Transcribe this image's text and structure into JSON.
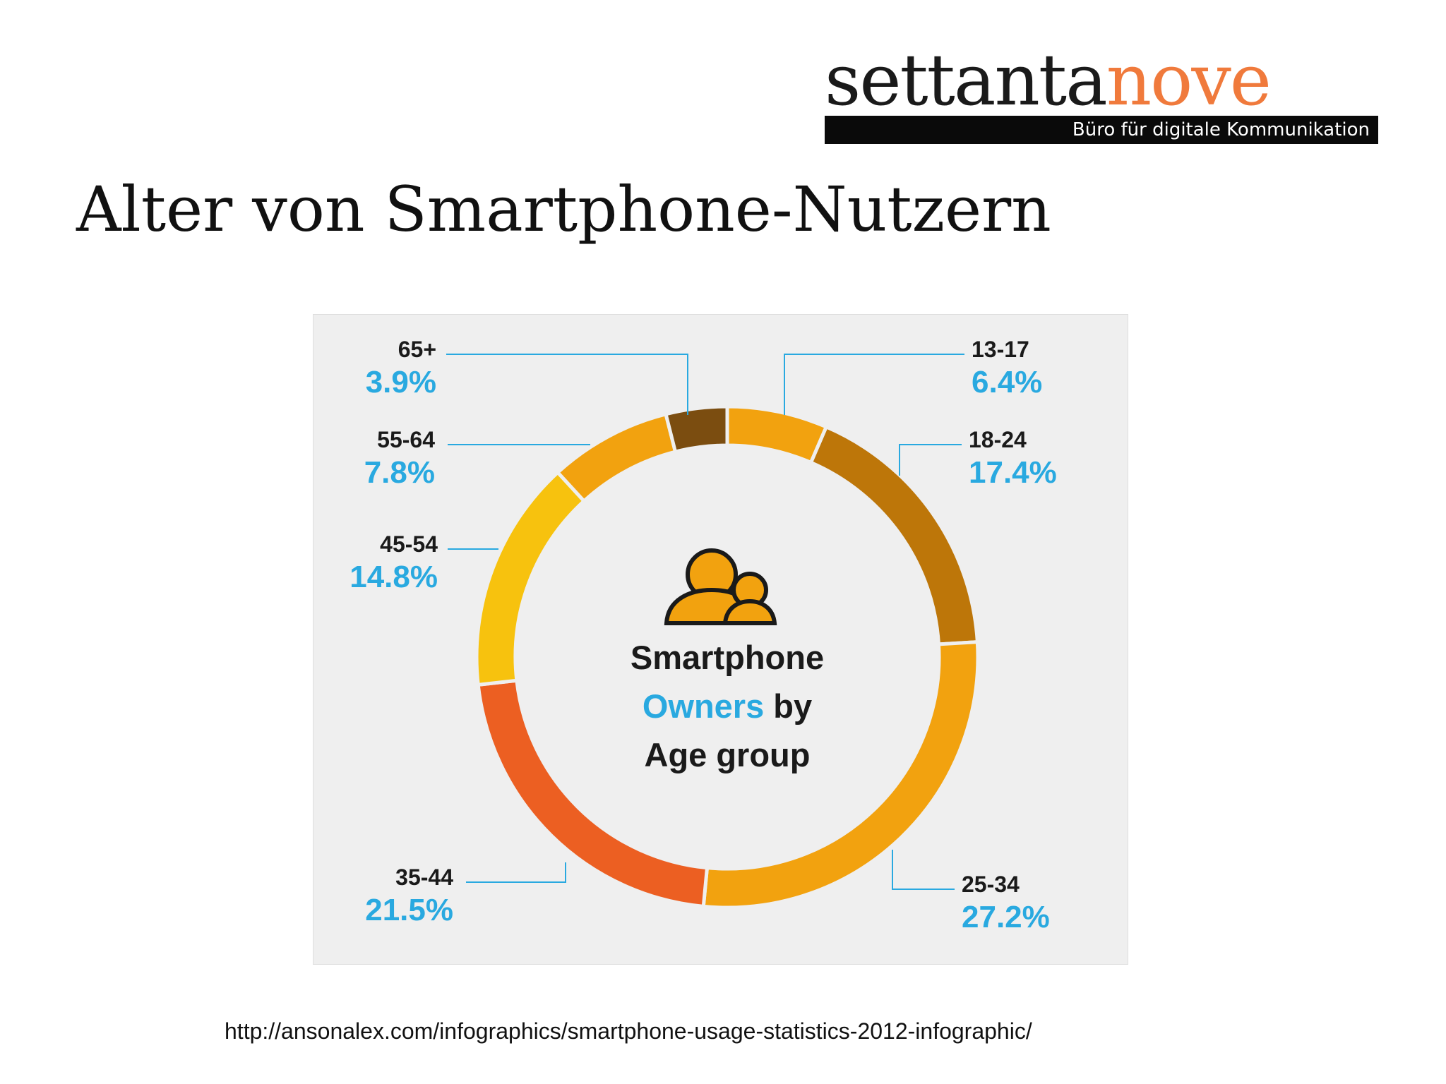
{
  "logo": {
    "word_part1": "settanta",
    "word_part2": "nove",
    "tagline": "Büro für digitale Kommunikation",
    "colors": {
      "part1": "#1a1a1a",
      "part2": "#f07a3c",
      "bar": "#0a0a0a"
    }
  },
  "slide": {
    "title": "Alter von Smartphone-Nutzern",
    "source_url": "http://ansonalex.com/infographics/smartphone-usage-statistics-2012-infographic/"
  },
  "chart_data": {
    "type": "pie",
    "center_title": [
      "Smartphone",
      "Owners",
      "by",
      "Age group"
    ],
    "icon": "people-icon",
    "label_color": "#29a9e0",
    "slices": [
      {
        "label": "13-17",
        "value": 6.4,
        "value_label": "6.4%",
        "color": "#f2a20f"
      },
      {
        "label": "18-24",
        "value": 17.4,
        "value_label": "17.4%",
        "color": "#bd7609"
      },
      {
        "label": "25-34",
        "value": 27.2,
        "value_label": "27.2%",
        "color": "#f2a20f"
      },
      {
        "label": "35-44",
        "value": 21.5,
        "value_label": "21.5%",
        "color": "#ec5f22"
      },
      {
        "label": "45-54",
        "value": 14.8,
        "value_label": "14.8%",
        "color": "#f7c20e"
      },
      {
        "label": "55-64",
        "value": 7.8,
        "value_label": "7.8%",
        "color": "#f2a20f"
      },
      {
        "label": "65+",
        "value": 3.9,
        "value_label": "3.9%",
        "color": "#7b4d10"
      }
    ]
  }
}
